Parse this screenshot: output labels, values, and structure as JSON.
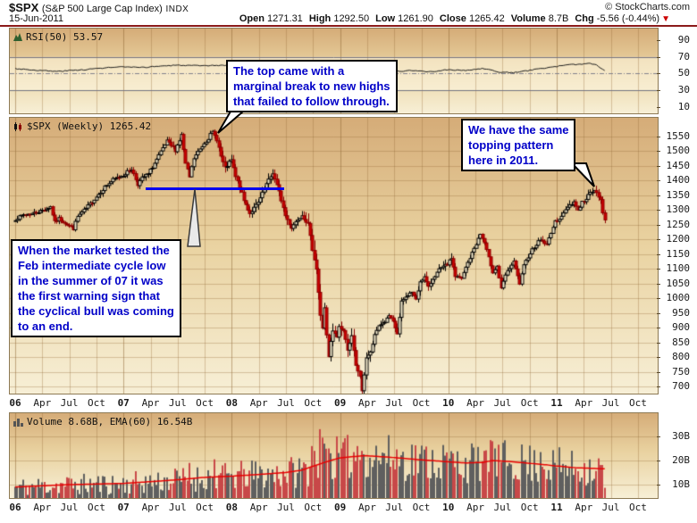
{
  "header": {
    "symbol": "$SPX",
    "name": "(S&P 500 Large Cap Index)",
    "exchange": "INDX",
    "date": "15-Jun-2011",
    "copyright": "© StockCharts.com",
    "quote": [
      {
        "label": "Open",
        "value": "1271.31"
      },
      {
        "label": "High",
        "value": "1292.50"
      },
      {
        "label": "Low",
        "value": "1261.90"
      },
      {
        "label": "Close",
        "value": "1265.42"
      },
      {
        "label": "Volume",
        "value": "8.7B"
      },
      {
        "label": "Chg",
        "value": "-5.56 (-0.44%)"
      }
    ],
    "chg_arrow": "▼"
  },
  "panels": {
    "rsi": {
      "label": "RSI(50) 53.57"
    },
    "price": {
      "label": "$SPX (Weekly) 1265.42"
    },
    "volume": {
      "label": "Volume 8.68B, EMA(60) 16.54B"
    }
  },
  "annotations": {
    "top_2007": {
      "text": "The top came with a\nmarginal break to new highs\nthat failed to follow through."
    },
    "top_2011": {
      "text": "We have the same\ntopping pattern\nhere in 2011."
    },
    "warning_2007": {
      "text": "When the market tested the\nFeb intermediate cycle low\nin the summer of 07 it was\nthe first warning sign that\nthe cyclical bull was coming\nto an end."
    },
    "support_line": {
      "price_level": 1372,
      "color": "#0000EE"
    }
  },
  "x_axis": {
    "unit": "months from Jan 2006",
    "labels": [
      {
        "m": 0,
        "t": "06",
        "bold": true
      },
      {
        "m": 3,
        "t": "Apr"
      },
      {
        "m": 6,
        "t": "Jul"
      },
      {
        "m": 9,
        "t": "Oct"
      },
      {
        "m": 12,
        "t": "07",
        "bold": true
      },
      {
        "m": 15,
        "t": "Apr"
      },
      {
        "m": 18,
        "t": "Jul"
      },
      {
        "m": 21,
        "t": "Oct"
      },
      {
        "m": 24,
        "t": "08",
        "bold": true
      },
      {
        "m": 27,
        "t": "Apr"
      },
      {
        "m": 30,
        "t": "Jul"
      },
      {
        "m": 33,
        "t": "Oct"
      },
      {
        "m": 36,
        "t": "09",
        "bold": true
      },
      {
        "m": 39,
        "t": "Apr"
      },
      {
        "m": 42,
        "t": "Jul"
      },
      {
        "m": 45,
        "t": "Oct"
      },
      {
        "m": 48,
        "t": "10",
        "bold": true
      },
      {
        "m": 51,
        "t": "Apr"
      },
      {
        "m": 54,
        "t": "Jul"
      },
      {
        "m": 57,
        "t": "Oct"
      },
      {
        "m": 60,
        "t": "11",
        "bold": true
      },
      {
        "m": 63,
        "t": "Apr"
      },
      {
        "m": 66,
        "t": "Jul"
      },
      {
        "m": 69,
        "t": "Oct"
      }
    ]
  },
  "chart_data": [
    {
      "type": "line",
      "panel": "rsi",
      "name": "RSI(50)",
      "ylim": [
        0,
        100
      ],
      "yticks": [
        90,
        70,
        50,
        30,
        10
      ],
      "overbought": 70,
      "oversold": 30,
      "last_value": 53.57,
      "x_unit": "week index from Jan 2006",
      "anchors": [
        [
          0,
          56
        ],
        [
          10,
          54
        ],
        [
          20,
          52.5
        ],
        [
          26,
          53.5
        ],
        [
          35,
          55
        ],
        [
          44,
          57
        ],
        [
          52,
          58
        ],
        [
          60,
          57
        ],
        [
          70,
          59
        ],
        [
          80,
          60
        ],
        [
          90,
          59
        ],
        [
          100,
          60
        ],
        [
          108,
          58.5
        ],
        [
          117,
          56.5
        ],
        [
          125,
          57.5
        ],
        [
          134,
          55.5
        ],
        [
          143,
          53
        ],
        [
          151,
          50.5
        ],
        [
          160,
          51.5
        ],
        [
          167,
          50
        ],
        [
          178,
          52
        ],
        [
          190,
          53.5
        ],
        [
          200,
          52
        ],
        [
          208,
          54.5
        ],
        [
          217,
          53.5
        ],
        [
          225,
          56
        ],
        [
          234,
          51.5
        ],
        [
          240,
          51
        ],
        [
          247,
          53.5
        ],
        [
          256,
          57
        ],
        [
          264,
          59.5
        ],
        [
          270,
          61
        ],
        [
          277,
          62
        ],
        [
          280,
          60.5
        ],
        [
          284,
          53.57
        ]
      ]
    },
    {
      "type": "candlestick",
      "panel": "price",
      "name": "$SPX Weekly",
      "ylim": [
        680,
        1580
      ],
      "yticks": [
        1550,
        1500,
        1450,
        1400,
        1350,
        1300,
        1250,
        1200,
        1150,
        1100,
        1050,
        1000,
        950,
        900,
        850,
        800,
        750,
        700
      ],
      "last_close": 1265.42,
      "x_unit": "week index from Jan 2006",
      "close_anchors": [
        [
          0,
          1268
        ],
        [
          4,
          1283
        ],
        [
          8,
          1287
        ],
        [
          12,
          1295
        ],
        [
          17,
          1310
        ],
        [
          19,
          1258
        ],
        [
          21,
          1270
        ],
        [
          25,
          1250
        ],
        [
          28,
          1236
        ],
        [
          30,
          1277
        ],
        [
          34,
          1304
        ],
        [
          38,
          1336
        ],
        [
          43,
          1378
        ],
        [
          47,
          1401
        ],
        [
          52,
          1418
        ],
        [
          56,
          1438
        ],
        [
          59,
          1387
        ],
        [
          61,
          1407
        ],
        [
          64,
          1421
        ],
        [
          69,
          1482
        ],
        [
          73,
          1531
        ],
        [
          77,
          1503
        ],
        [
          80,
          1553
        ],
        [
          82,
          1455
        ],
        [
          84,
          1411
        ],
        [
          86,
          1474
        ],
        [
          91,
          1527
        ],
        [
          95,
          1562
        ],
        [
          97,
          1540
        ],
        [
          99,
          1481
        ],
        [
          101,
          1440
        ],
        [
          104,
          1468
        ],
        [
          106,
          1411
        ],
        [
          108,
          1378
        ],
        [
          110,
          1331
        ],
        [
          113,
          1288
        ],
        [
          117,
          1323
        ],
        [
          121,
          1386
        ],
        [
          124,
          1425
        ],
        [
          127,
          1360
        ],
        [
          130,
          1280
        ],
        [
          133,
          1239
        ],
        [
          135,
          1260
        ],
        [
          138,
          1283
        ],
        [
          141,
          1250
        ],
        [
          143,
          1166
        ],
        [
          145,
          1099
        ],
        [
          147,
          940
        ],
        [
          148,
          899
        ],
        [
          149,
          968
        ],
        [
          150,
          873
        ],
        [
          151,
          800
        ],
        [
          152,
          851
        ],
        [
          153,
          888
        ],
        [
          155,
          868
        ],
        [
          156,
          903
        ],
        [
          158,
          890
        ],
        [
          160,
          826
        ],
        [
          162,
          870
        ],
        [
          164,
          770
        ],
        [
          166,
          735
        ],
        [
          167,
          683
        ],
        [
          169,
          798
        ],
        [
          171,
          815
        ],
        [
          173,
          873
        ],
        [
          175,
          907
        ],
        [
          178,
          919
        ],
        [
          180,
          940
        ],
        [
          182,
          919
        ],
        [
          184,
          879
        ],
        [
          186,
          987
        ],
        [
          189,
          1010
        ],
        [
          191,
          1021
        ],
        [
          193,
          994
        ],
        [
          195,
          1057
        ],
        [
          197,
          1071
        ],
        [
          199,
          1036
        ],
        [
          201,
          1066
        ],
        [
          204,
          1096
        ],
        [
          206,
          1106
        ],
        [
          208,
          1115
        ],
        [
          210,
          1136
        ],
        [
          212,
          1074
        ],
        [
          215,
          1066
        ],
        [
          217,
          1104
        ],
        [
          221,
          1169
        ],
        [
          224,
          1217
        ],
        [
          226,
          1187
        ],
        [
          228,
          1136
        ],
        [
          230,
          1089
        ],
        [
          232,
          1108
        ],
        [
          234,
          1031
        ],
        [
          236,
          1078
        ],
        [
          238,
          1102
        ],
        [
          240,
          1122
        ],
        [
          243,
          1049
        ],
        [
          245,
          1109
        ],
        [
          247,
          1141
        ],
        [
          249,
          1165
        ],
        [
          251,
          1183
        ],
        [
          253,
          1199
        ],
        [
          256,
          1181
        ],
        [
          258,
          1224
        ],
        [
          260,
          1258
        ],
        [
          262,
          1272
        ],
        [
          264,
          1286
        ],
        [
          266,
          1311
        ],
        [
          269,
          1327
        ],
        [
          271,
          1298
        ],
        [
          273,
          1326
        ],
        [
          275,
          1333
        ],
        [
          277,
          1364
        ],
        [
          279,
          1363
        ],
        [
          281,
          1345
        ],
        [
          282,
          1331
        ],
        [
          283,
          1288
        ],
        [
          284,
          1265.42
        ]
      ]
    },
    {
      "type": "bar",
      "panel": "volume",
      "name": "Volume (billions of shares)",
      "ylim": [
        0,
        35
      ],
      "ytick_labels": [
        "30B",
        "20B",
        "10B"
      ],
      "yticks": [
        30,
        20,
        10
      ],
      "last_volume_b": 8.68,
      "ema60_last_b": 16.54,
      "x_unit": "week index from Jan 2006",
      "ema60_anchors": [
        [
          0,
          9
        ],
        [
          26,
          10
        ],
        [
          52,
          10.5
        ],
        [
          70,
          11.5
        ],
        [
          78,
          12
        ],
        [
          91,
          13
        ],
        [
          104,
          13.5
        ],
        [
          117,
          14.2
        ],
        [
          130,
          15
        ],
        [
          138,
          16
        ],
        [
          143,
          17.5
        ],
        [
          150,
          19.5
        ],
        [
          156,
          21
        ],
        [
          165,
          21.8
        ],
        [
          169,
          22
        ],
        [
          178,
          21.5
        ],
        [
          186,
          21
        ],
        [
          195,
          20.3
        ],
        [
          204,
          19.8
        ],
        [
          208,
          19.5
        ],
        [
          217,
          19
        ],
        [
          225,
          19.2
        ],
        [
          230,
          20
        ],
        [
          238,
          19.6
        ],
        [
          243,
          19.2
        ],
        [
          251,
          18.6
        ],
        [
          256,
          18.2
        ],
        [
          260,
          17.8
        ],
        [
          264,
          17.5
        ],
        [
          270,
          17
        ],
        [
          277,
          16.8
        ],
        [
          284,
          16.54
        ]
      ],
      "spikes": {
        "84": 19,
        "96": 20.5,
        "143": 26,
        "144": 24,
        "147": 33,
        "148": 29.5,
        "149": 27,
        "151": 25,
        "152": 23,
        "165": 26,
        "167": 24,
        "178": 23,
        "226": 24,
        "230": 28,
        "231": 25,
        "253": 23.5
      }
    }
  ],
  "colors": {
    "candle_up_stroke": "#000000",
    "candle_up_fill": "#F5ECCE",
    "candle_down": "#CC0000",
    "candle_down_stroke": "#8B0000",
    "volume_up_bar": "#5F5F5F",
    "volume_down_bar": "#C84848",
    "ema_line": "#E80000",
    "rsi_line": "#1A1A1A",
    "annotation_text": "#0000C8",
    "support_line": "#0000EE",
    "grid": "rgba(150,110,60,0.35)",
    "band_light": "rgba(255,250,232,0.5)",
    "header_rule": "#8B1A1A",
    "chg_arrow": "#CC0000"
  }
}
